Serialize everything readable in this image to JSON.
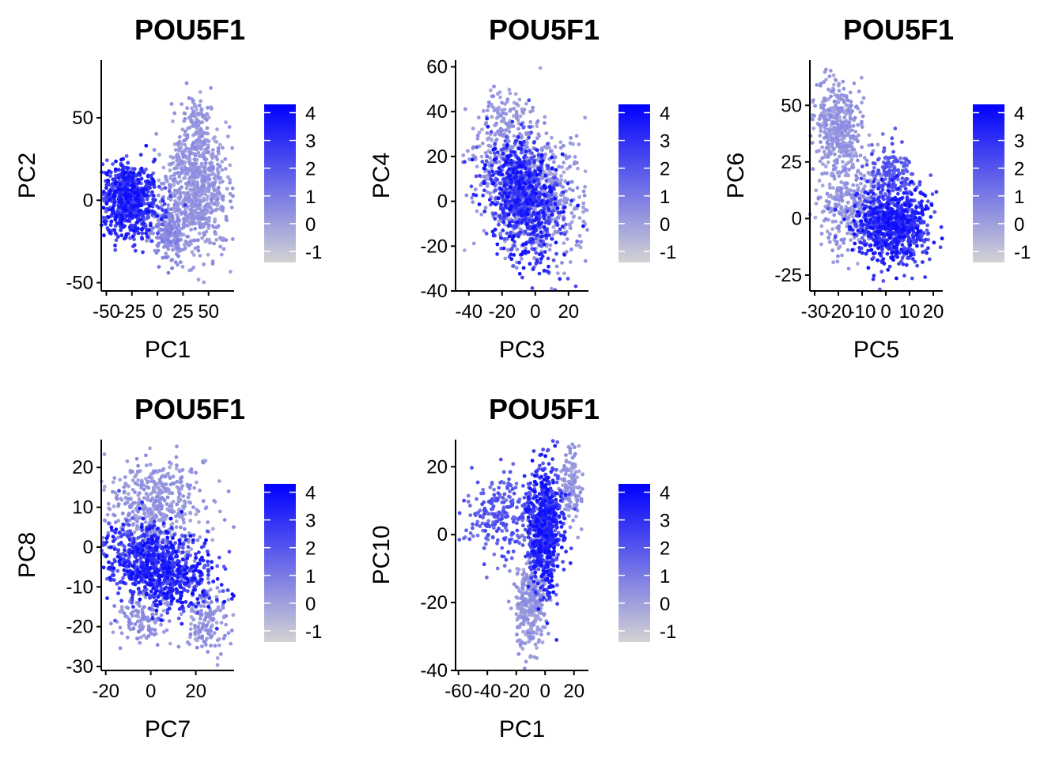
{
  "colors": {
    "low": "#d3d3d3",
    "high": "#0000ff",
    "axis": "#000000",
    "text": "#000000"
  },
  "chart_data": [
    {
      "type": "scatter",
      "title": "POU5F1",
      "xlabel": "PC1",
      "ylabel": "PC2",
      "xlim": [
        -55,
        75
      ],
      "ylim": [
        -55,
        85
      ],
      "xticks": [
        -50,
        -25,
        0,
        25,
        50
      ],
      "xtick_labels": [
        "-50",
        "-25",
        "0",
        "25",
        "50"
      ],
      "yticks": [
        -50,
        0,
        50
      ],
      "ytick_labels": [
        "-50",
        "0",
        "50"
      ],
      "legend": {
        "title": "",
        "values": [
          4,
          3,
          2,
          1,
          0,
          -1
        ],
        "labels": [
          "4",
          "3",
          "2",
          "1",
          "0",
          "-1"
        ],
        "range": [
          -1.4,
          4.3
        ],
        "position": "right"
      },
      "clusters": [
        {
          "cx": 38,
          "cy": 5,
          "sx": 17,
          "sy": 18,
          "rot": 0.2,
          "n": 700,
          "expr": [
            -0.3,
            0.6
          ]
        },
        {
          "cx": 40,
          "cy": 45,
          "sx": 8,
          "sy": 12,
          "rot": 0,
          "n": 120,
          "expr": [
            -0.3,
            0.5
          ]
        },
        {
          "cx": 10,
          "cy": -20,
          "sx": 10,
          "sy": 9,
          "rot": 0,
          "n": 160,
          "expr": [
            0,
            1
          ]
        },
        {
          "cx": -28,
          "cy": 0,
          "sx": 14,
          "sy": 11,
          "rot": -0.15,
          "n": 750,
          "expr": [
            1.6,
            4
          ]
        }
      ]
    },
    {
      "type": "scatter",
      "title": "POU5F1",
      "xlabel": "PC3",
      "ylabel": "PC4",
      "xlim": [
        -48,
        32
      ],
      "ylim": [
        -40,
        63
      ],
      "xticks": [
        -40,
        -20,
        0,
        20
      ],
      "xtick_labels": [
        "-40",
        "-20",
        "0",
        "20"
      ],
      "yticks": [
        -40,
        -20,
        0,
        20,
        40,
        60
      ],
      "ytick_labels": [
        "-40",
        "-20",
        "0",
        "20",
        "40",
        "60"
      ],
      "legend": {
        "title": "",
        "values": [
          4,
          3,
          2,
          1,
          0,
          -1
        ],
        "labels": [
          "4",
          "3",
          "2",
          "1",
          "0",
          "-1"
        ],
        "range": [
          -1.4,
          4.3
        ],
        "position": "right"
      },
      "clusters": [
        {
          "cx": -3,
          "cy": 5,
          "sx": 18,
          "sy": 14,
          "rot": -0.5,
          "n": 750,
          "expr": [
            -0.3,
            0.6
          ]
        },
        {
          "cx": -20,
          "cy": 35,
          "sx": 8,
          "sy": 7,
          "rot": 0,
          "n": 120,
          "expr": [
            -0.3,
            0.6
          ]
        },
        {
          "cx": -8,
          "cy": 2,
          "sx": 10,
          "sy": 14,
          "rot": 0.5,
          "n": 800,
          "expr": [
            1.6,
            4
          ]
        }
      ]
    },
    {
      "type": "scatter",
      "title": "POU5F1",
      "xlabel": "PC5",
      "ylabel": "PC6",
      "xlim": [
        -32,
        24
      ],
      "ylim": [
        -32,
        70
      ],
      "xticks": [
        -30,
        -20,
        -10,
        0,
        10,
        20
      ],
      "xtick_labels": [
        "-30",
        "-20",
        "-10",
        "0",
        "10",
        "20"
      ],
      "yticks": [
        -25,
        0,
        25,
        50
      ],
      "ytick_labels": [
        "-25",
        "0",
        "25",
        "50"
      ],
      "legend": {
        "title": "",
        "values": [
          4,
          3,
          2,
          1,
          0,
          -1
        ],
        "labels": [
          "4",
          "3",
          "2",
          "1",
          "0",
          "-1"
        ],
        "range": [
          -1.4,
          4.3
        ],
        "position": "right"
      },
      "clusters": [
        {
          "cx": -20,
          "cy": 40,
          "sx": 5,
          "sy": 11,
          "rot": 0.15,
          "n": 400,
          "expr": [
            -0.3,
            0.6
          ]
        },
        {
          "cx": -15,
          "cy": 5,
          "sx": 8,
          "sy": 10,
          "rot": 0,
          "n": 300,
          "expr": [
            -0.3,
            0.6
          ]
        },
        {
          "cx": 3,
          "cy": -3,
          "sx": 8,
          "sy": 8,
          "rot": 0,
          "n": 850,
          "expr": [
            1.6,
            4
          ]
        },
        {
          "cx": 3,
          "cy": 20,
          "sx": 5,
          "sy": 6,
          "rot": 0,
          "n": 150,
          "expr": [
            1,
            2.5
          ]
        }
      ]
    },
    {
      "type": "scatter",
      "title": "POU5F1",
      "xlabel": "PC7",
      "ylabel": "PC8",
      "xlim": [
        -22,
        37
      ],
      "ylim": [
        -31,
        27
      ],
      "xticks": [
        -20,
        0,
        20
      ],
      "xtick_labels": [
        "-20",
        "0",
        "20"
      ],
      "yticks": [
        -30,
        -20,
        -10,
        0,
        10,
        20
      ],
      "ytick_labels": [
        "-30",
        "-20",
        "-10",
        "0",
        "10",
        "20"
      ],
      "legend": {
        "title": "",
        "values": [
          4,
          3,
          2,
          1,
          0,
          -1
        ],
        "labels": [
          "4",
          "3",
          "2",
          "1",
          "0",
          "-1"
        ],
        "range": [
          -1.4,
          4.3
        ],
        "position": "right"
      },
      "clusters": [
        {
          "cx": 2,
          "cy": 10,
          "sx": 11,
          "sy": 6,
          "rot": 0,
          "n": 500,
          "expr": [
            -0.3,
            0.6
          ]
        },
        {
          "cx": 25,
          "cy": -18,
          "sx": 5,
          "sy": 4,
          "rot": 0,
          "n": 150,
          "expr": [
            -0.3,
            0.7
          ]
        },
        {
          "cx": -4,
          "cy": -18,
          "sx": 6,
          "sy": 3,
          "rot": 0,
          "n": 120,
          "expr": [
            -0.2,
            0.8
          ]
        },
        {
          "cx": 3,
          "cy": -5,
          "sx": 12,
          "sy": 5,
          "rot": -0.15,
          "n": 900,
          "expr": [
            1.6,
            4
          ]
        }
      ]
    },
    {
      "type": "scatter",
      "title": "POU5F1",
      "xlabel": "PC1",
      "ylabel": "PC10",
      "xlim": [
        -62,
        30
      ],
      "ylim": [
        -40,
        28
      ],
      "xticks": [
        -60,
        -40,
        -20,
        0,
        20
      ],
      "xtick_labels": [
        "-60",
        "-40",
        "-20",
        "0",
        "20"
      ],
      "yticks": [
        -40,
        -20,
        0,
        20
      ],
      "ytick_labels": [
        "-40",
        "-20",
        "0",
        "20"
      ],
      "legend": {
        "title": "",
        "values": [
          4,
          3,
          2,
          1,
          0,
          -1
        ],
        "labels": [
          "4",
          "3",
          "2",
          "1",
          "0",
          "-1"
        ],
        "range": [
          -1.4,
          4.3
        ],
        "position": "right"
      },
      "clusters": [
        {
          "cx": -10,
          "cy": -20,
          "sx": 5,
          "sy": 7,
          "rot": 0,
          "n": 300,
          "expr": [
            -0.3,
            0.6
          ]
        },
        {
          "cx": 18,
          "cy": 15,
          "sx": 4,
          "sy": 6,
          "rot": 0,
          "n": 120,
          "expr": [
            -0.3,
            0.6
          ]
        },
        {
          "cx": -30,
          "cy": 5,
          "sx": 12,
          "sy": 6,
          "rot": 0,
          "n": 250,
          "expr": [
            1,
            2.5
          ]
        },
        {
          "cx": 0,
          "cy": 2,
          "sx": 6,
          "sy": 9,
          "rot": 0,
          "n": 700,
          "expr": [
            1.6,
            4
          ]
        }
      ]
    }
  ]
}
